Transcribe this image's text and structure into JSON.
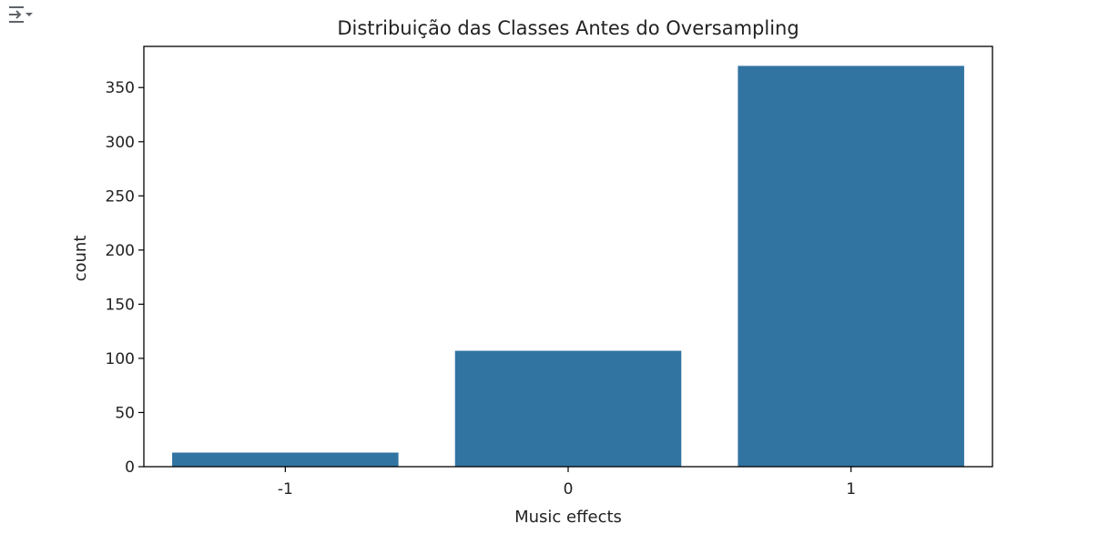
{
  "toolbar": {
    "output_icon": "output-collapse-icon"
  },
  "colors": {
    "bar": "#3274a1",
    "axis": "#000000",
    "text": "#222222"
  },
  "chart_data": {
    "type": "bar",
    "title": "Distribuição das Classes Antes do Oversampling",
    "xlabel": "Music effects",
    "ylabel": "count",
    "categories": [
      "-1",
      "0",
      "1"
    ],
    "values": [
      13,
      107,
      370
    ],
    "ylim": [
      0,
      388
    ],
    "yticks": [
      0,
      50,
      100,
      150,
      200,
      250,
      300,
      350
    ],
    "grid": false,
    "legend": "none"
  }
}
